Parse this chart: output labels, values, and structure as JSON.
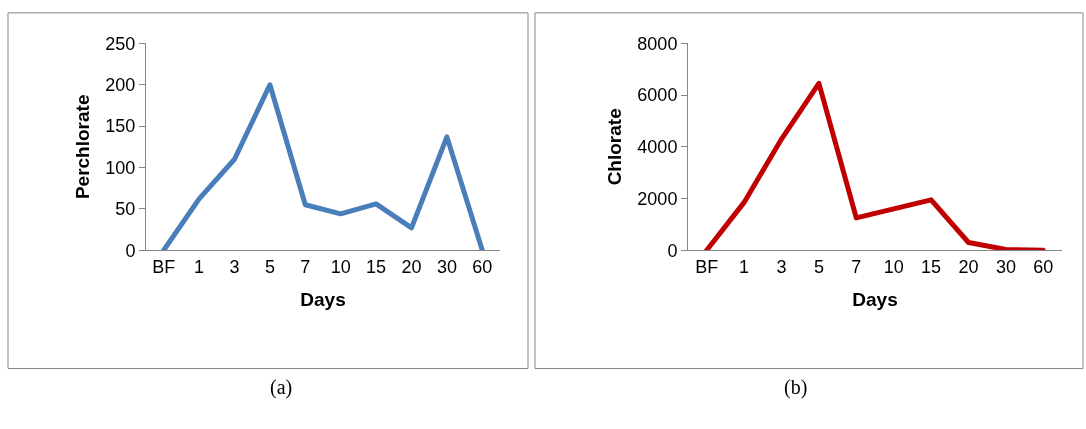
{
  "chart_data": [
    {
      "type": "line",
      "xlabel": "Days",
      "ylabel": "Perchlorate",
      "categories": [
        "BF",
        "1",
        "3",
        "5",
        "7",
        "10",
        "15",
        "20",
        "30",
        "60"
      ],
      "values": [
        0,
        62,
        110,
        200,
        55,
        44,
        56,
        27,
        137,
        0
      ],
      "color": "#4a7ebb",
      "ylim": [
        0,
        250
      ],
      "yticks": [
        0,
        50,
        100,
        150,
        200,
        250
      ],
      "annotations": [
        "(a)"
      ]
    },
    {
      "type": "line",
      "xlabel": "Days",
      "ylabel": "Chlorate",
      "categories": [
        "BF",
        "1",
        "3",
        "5",
        "7",
        "10",
        "15",
        "20",
        "30",
        "60"
      ],
      "values": [
        0,
        1850,
        4300,
        6450,
        1250,
        1600,
        1950,
        300,
        30,
        0
      ],
      "color": "#c00000",
      "ylim": [
        0,
        8000
      ],
      "yticks": [
        0,
        2000,
        4000,
        6000,
        8000
      ],
      "annotations": [
        "(b)"
      ]
    }
  ]
}
